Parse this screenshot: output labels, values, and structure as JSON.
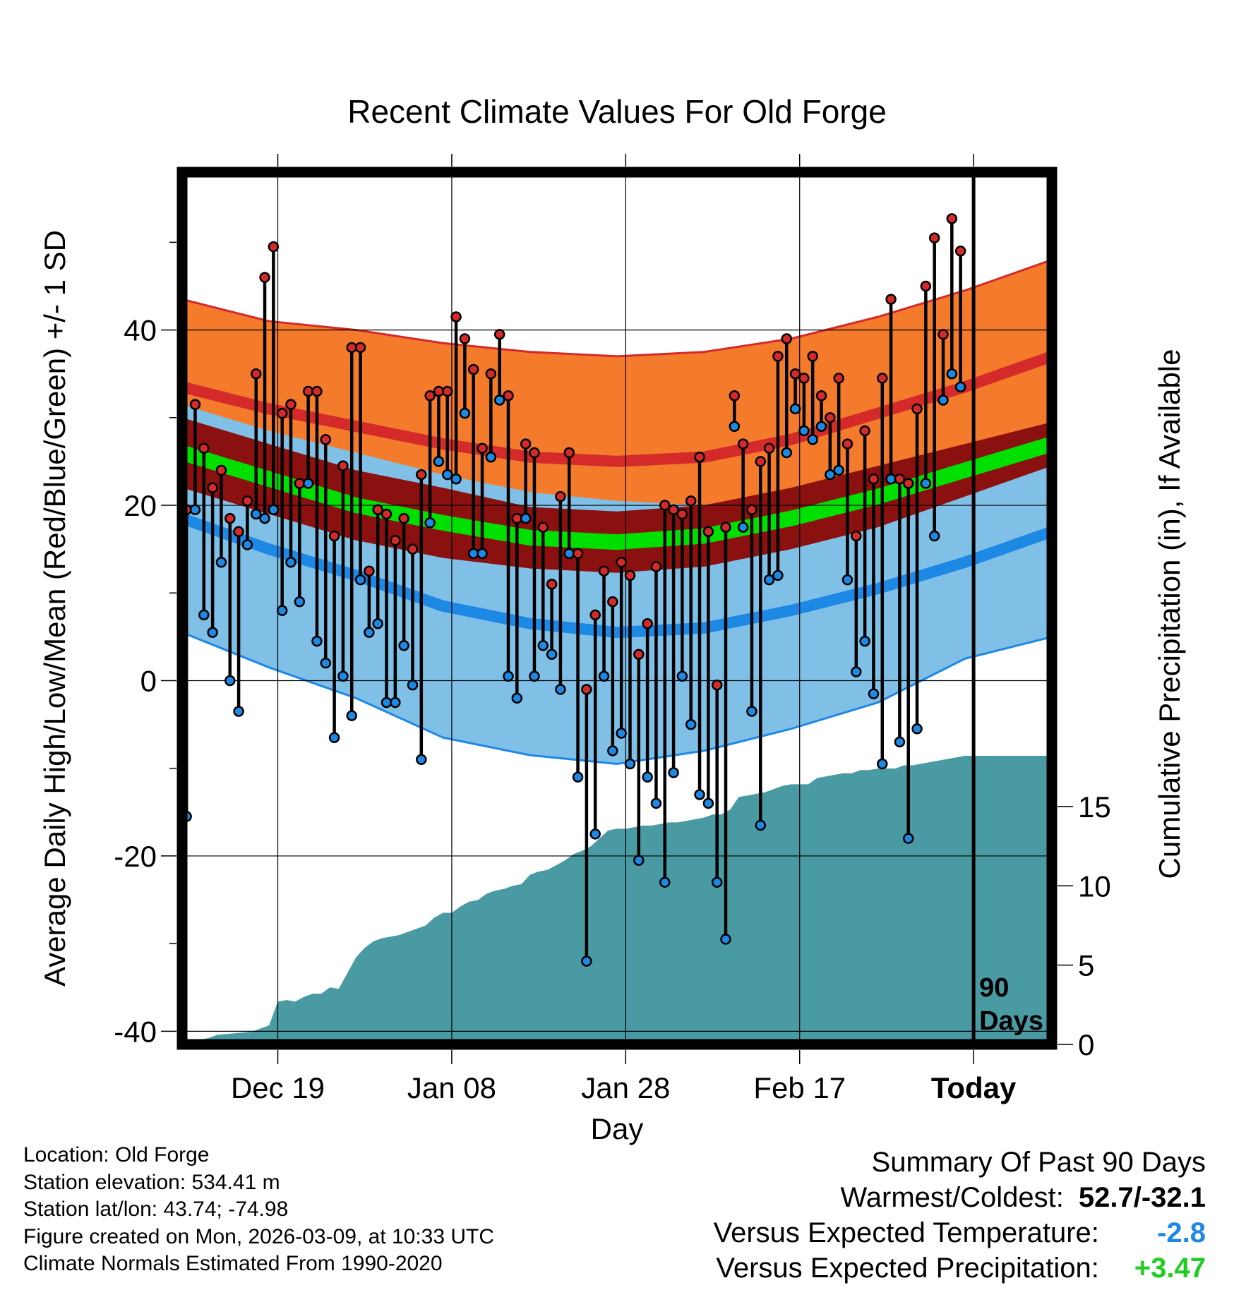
{
  "chart_data": {
    "type": "line",
    "title": "Recent Climate Values For Old Forge",
    "xlabel": "Day",
    "ylabel": "Average Daily High/Low/Mean (Red/Blue/Green) +/- 1 SD",
    "y2label": "Cumulative Precipitation (in), If Available",
    "xlim": [
      0,
      100
    ],
    "ylim": [
      -41.5,
      58
    ],
    "y2lim": [
      0,
      55
    ],
    "x_ticks": [
      {
        "x": 11,
        "label": "Dec 19",
        "bold": false
      },
      {
        "x": 31,
        "label": "Jan 08",
        "bold": false
      },
      {
        "x": 51,
        "label": "Jan 28",
        "bold": false
      },
      {
        "x": 71,
        "label": "Feb 17",
        "bold": false
      },
      {
        "x": 91,
        "label": "Today",
        "bold": true
      }
    ],
    "y_ticks": [
      -40,
      -20,
      0,
      20,
      40
    ],
    "y2_ticks": [
      0,
      5,
      10,
      15
    ],
    "today_x": 91,
    "today_label": [
      "90",
      "Days"
    ],
    "colors": {
      "high_band": "#f47b2b",
      "high_mean": "#d42a2a",
      "low_band": "#80c0e6",
      "low_mean": "#1e88e5",
      "mean_band": "#8b1010",
      "mean_line": "#00e000",
      "precip": "#4a9aa3",
      "frame": "#000000"
    },
    "normals": [
      {
        "x": 0,
        "high": 33.5,
        "high_sd": 10.0,
        "low": 18.5,
        "low_sd": 13.0,
        "mean": 26.0,
        "mean_sd": 4.0
      },
      {
        "x": 10,
        "high": 31.0,
        "high_sd": 10.0,
        "low": 15.0,
        "low_sd": 13.5,
        "mean": 23.0,
        "mean_sd": 4.0
      },
      {
        "x": 20,
        "high": 29.0,
        "high_sd": 11.0,
        "low": 12.0,
        "low_sd": 14.0,
        "mean": 20.0,
        "mean_sd": 4.0
      },
      {
        "x": 30,
        "high": 27.0,
        "high_sd": 11.5,
        "low": 8.5,
        "low_sd": 15.0,
        "mean": 18.0,
        "mean_sd": 4.0
      },
      {
        "x": 40,
        "high": 25.5,
        "high_sd": 12.0,
        "low": 6.5,
        "low_sd": 15.0,
        "mean": 16.3,
        "mean_sd": 3.5
      },
      {
        "x": 50,
        "high": 25.0,
        "high_sd": 12.0,
        "low": 5.5,
        "low_sd": 15.0,
        "mean": 15.8,
        "mean_sd": 3.5
      },
      {
        "x": 60,
        "high": 25.5,
        "high_sd": 12.0,
        "low": 6.0,
        "low_sd": 14.0,
        "mean": 16.5,
        "mean_sd": 3.5
      },
      {
        "x": 70,
        "high": 27.5,
        "high_sd": 11.5,
        "low": 8.0,
        "low_sd": 13.5,
        "mean": 18.5,
        "mean_sd": 3.5
      },
      {
        "x": 80,
        "high": 30.5,
        "high_sd": 11.0,
        "low": 10.5,
        "low_sd": 13.0,
        "mean": 21.0,
        "mean_sd": 3.5
      },
      {
        "x": 90,
        "high": 33.5,
        "high_sd": 11.0,
        "low": 13.5,
        "low_sd": 11.0,
        "mean": 24.0,
        "mean_sd": 3.0
      },
      {
        "x": 100,
        "high": 37.0,
        "high_sd": 11.0,
        "low": 17.0,
        "low_sd": 12.0,
        "mean": 27.0,
        "mean_sd": 2.5
      }
    ],
    "precip": [
      [
        1,
        0.1
      ],
      [
        2,
        0.3
      ],
      [
        3,
        0.4
      ],
      [
        4,
        0.6
      ],
      [
        6,
        0.7
      ],
      [
        8,
        0.8
      ],
      [
        9,
        1.0
      ],
      [
        10,
        1.2
      ],
      [
        11,
        2.7
      ],
      [
        12,
        2.8
      ],
      [
        13,
        2.7
      ],
      [
        14,
        3.0
      ],
      [
        15,
        3.2
      ],
      [
        16,
        3.2
      ],
      [
        17,
        3.6
      ],
      [
        18,
        3.5
      ],
      [
        19,
        4.5
      ],
      [
        20,
        5.5
      ],
      [
        21,
        6.1
      ],
      [
        22,
        6.5
      ],
      [
        23,
        6.7
      ],
      [
        24,
        6.8
      ],
      [
        25,
        6.9
      ],
      [
        26,
        7.1
      ],
      [
        27,
        7.3
      ],
      [
        28,
        7.5
      ],
      [
        29,
        8.0
      ],
      [
        30,
        8.3
      ],
      [
        31,
        8.3
      ],
      [
        32,
        8.7
      ],
      [
        33,
        9.0
      ],
      [
        34,
        9.1
      ],
      [
        35,
        9.5
      ],
      [
        36,
        9.7
      ],
      [
        37,
        9.8
      ],
      [
        38,
        10.0
      ],
      [
        39,
        10.1
      ],
      [
        40,
        10.7
      ],
      [
        41,
        10.9
      ],
      [
        42,
        11.0
      ],
      [
        43,
        11.3
      ],
      [
        44,
        11.6
      ],
      [
        45,
        12.0
      ],
      [
        46,
        12.2
      ],
      [
        47,
        12.5
      ],
      [
        48,
        13.0
      ],
      [
        49,
        13.5
      ],
      [
        50,
        13.6
      ],
      [
        51,
        13.6
      ],
      [
        52,
        13.7
      ],
      [
        53,
        13.8
      ],
      [
        54,
        13.8
      ],
      [
        55,
        13.9
      ],
      [
        56,
        14.0
      ],
      [
        57,
        14.0
      ],
      [
        58,
        14.1
      ],
      [
        59,
        14.2
      ],
      [
        60,
        14.3
      ],
      [
        61,
        14.5
      ],
      [
        62,
        14.5
      ],
      [
        63,
        14.8
      ],
      [
        64,
        15.6
      ],
      [
        65,
        15.7
      ],
      [
        66,
        15.8
      ],
      [
        67,
        15.9
      ],
      [
        68,
        16.1
      ],
      [
        69,
        16.3
      ],
      [
        70,
        16.4
      ],
      [
        71,
        16.4
      ],
      [
        72,
        16.4
      ],
      [
        73,
        16.8
      ],
      [
        74,
        16.9
      ],
      [
        75,
        17.0
      ],
      [
        76,
        17.1
      ],
      [
        77,
        17.1
      ],
      [
        78,
        17.3
      ],
      [
        79,
        17.3
      ],
      [
        80,
        17.4
      ],
      [
        81,
        17.4
      ],
      [
        82,
        17.4
      ],
      [
        83,
        17.6
      ],
      [
        84,
        17.6
      ],
      [
        85,
        17.7
      ],
      [
        86,
        17.8
      ],
      [
        87,
        17.9
      ],
      [
        88,
        18.0
      ],
      [
        89,
        18.1
      ],
      [
        90,
        18.2
      ]
    ],
    "daily": [
      {
        "x": 0.5,
        "high": 19.5,
        "low": -15.5
      },
      {
        "x": 1.5,
        "high": 31.5,
        "low": 19.5
      },
      {
        "x": 2.5,
        "high": 26.5,
        "low": 7.5
      },
      {
        "x": 3.5,
        "high": 22.0,
        "low": 5.5
      },
      {
        "x": 4.5,
        "high": 24.0,
        "low": 13.5
      },
      {
        "x": 5.5,
        "high": 18.5,
        "low": 0.0
      },
      {
        "x": 6.5,
        "high": 17.0,
        "low": -3.5
      },
      {
        "x": 7.5,
        "high": 20.5,
        "low": 15.5
      },
      {
        "x": 8.5,
        "high": 35.0,
        "low": 19.0
      },
      {
        "x": 9.5,
        "high": 46.0,
        "low": 18.5
      },
      {
        "x": 10.5,
        "high": 49.5,
        "low": 19.5
      },
      {
        "x": 11.5,
        "high": 30.5,
        "low": 8.0
      },
      {
        "x": 12.5,
        "high": 31.5,
        "low": 13.5
      },
      {
        "x": 13.5,
        "high": 22.5,
        "low": 9.0
      },
      {
        "x": 14.5,
        "high": 33.0,
        "low": 22.5
      },
      {
        "x": 15.5,
        "high": 33.0,
        "low": 4.5
      },
      {
        "x": 16.5,
        "high": 27.5,
        "low": 2.0
      },
      {
        "x": 17.5,
        "high": 16.5,
        "low": -6.5
      },
      {
        "x": 18.5,
        "high": 24.5,
        "low": 0.5
      },
      {
        "x": 19.5,
        "high": 38.0,
        "low": -4.0
      },
      {
        "x": 20.5,
        "high": 38.0,
        "low": 11.5
      },
      {
        "x": 21.5,
        "high": 12.5,
        "low": 5.5
      },
      {
        "x": 22.5,
        "high": 19.5,
        "low": 6.5
      },
      {
        "x": 23.5,
        "high": 19.0,
        "low": -2.5
      },
      {
        "x": 24.5,
        "high": 16.0,
        "low": -2.5
      },
      {
        "x": 25.5,
        "high": 18.5,
        "low": 4.0
      },
      {
        "x": 26.5,
        "high": 15.0,
        "low": -0.5
      },
      {
        "x": 27.5,
        "high": 23.5,
        "low": -9.0
      },
      {
        "x": 28.5,
        "high": 32.5,
        "low": 18.0
      },
      {
        "x": 29.5,
        "high": 33.0,
        "low": 25.0
      },
      {
        "x": 30.5,
        "high": 33.0,
        "low": 23.5
      },
      {
        "x": 31.5,
        "high": 41.5,
        "low": 23.0
      },
      {
        "x": 32.5,
        "high": 39.0,
        "low": 30.5
      },
      {
        "x": 33.5,
        "high": 35.5,
        "low": 14.5
      },
      {
        "x": 34.5,
        "high": 26.5,
        "low": 14.5
      },
      {
        "x": 35.5,
        "high": 35.0,
        "low": 25.5
      },
      {
        "x": 36.5,
        "high": 39.5,
        "low": 32.0
      },
      {
        "x": 37.5,
        "high": 32.5,
        "low": 0.5
      },
      {
        "x": 38.5,
        "high": 18.5,
        "low": -2.0
      },
      {
        "x": 39.5,
        "high": 27.0,
        "low": 18.5
      },
      {
        "x": 40.5,
        "high": 26.0,
        "low": 0.5
      },
      {
        "x": 41.5,
        "high": 17.5,
        "low": 4.0
      },
      {
        "x": 42.5,
        "high": 11.0,
        "low": 3.0
      },
      {
        "x": 43.5,
        "high": 21.0,
        "low": -1.0
      },
      {
        "x": 44.5,
        "high": 26.0,
        "low": 14.5
      },
      {
        "x": 45.5,
        "high": 14.5,
        "low": -11.0
      },
      {
        "x": 46.5,
        "high": -1.0,
        "low": -32.0
      },
      {
        "x": 47.5,
        "high": 7.5,
        "low": -17.5
      },
      {
        "x": 48.5,
        "high": 12.5,
        "low": 0.5
      },
      {
        "x": 49.5,
        "high": 9.0,
        "low": -8.0
      },
      {
        "x": 50.5,
        "high": 13.5,
        "low": -6.0
      },
      {
        "x": 51.5,
        "high": 12.0,
        "low": -9.5
      },
      {
        "x": 52.5,
        "high": 3.0,
        "low": -20.5
      },
      {
        "x": 53.5,
        "high": 6.5,
        "low": -11.0
      },
      {
        "x": 54.5,
        "high": 13.0,
        "low": -14.0
      },
      {
        "x": 55.5,
        "high": 20.0,
        "low": -23.0
      },
      {
        "x": 56.5,
        "high": 19.5,
        "low": -10.5
      },
      {
        "x": 57.5,
        "high": 19.0,
        "low": 0.5
      },
      {
        "x": 58.5,
        "high": 20.5,
        "low": -5.0
      },
      {
        "x": 59.5,
        "high": 25.5,
        "low": -13.0
      },
      {
        "x": 60.5,
        "high": 17.0,
        "low": -14.0
      },
      {
        "x": 61.5,
        "high": -0.5,
        "low": -23.0
      },
      {
        "x": 62.5,
        "high": 17.5,
        "low": -29.5
      },
      {
        "x": 63.5,
        "high": 32.5,
        "low": 29.0
      },
      {
        "x": 64.5,
        "high": 27.0,
        "low": 17.5
      },
      {
        "x": 65.5,
        "high": 19.5,
        "low": -3.5
      },
      {
        "x": 66.5,
        "high": 25.0,
        "low": -16.5
      },
      {
        "x": 67.5,
        "high": 26.5,
        "low": 11.5
      },
      {
        "x": 68.5,
        "high": 37.0,
        "low": 12.0
      },
      {
        "x": 69.5,
        "high": 39.0,
        "low": 26.0
      },
      {
        "x": 70.5,
        "high": 35.0,
        "low": 31.0
      },
      {
        "x": 71.5,
        "high": 34.5,
        "low": 28.5
      },
      {
        "x": 72.5,
        "high": 37.0,
        "low": 27.5
      },
      {
        "x": 73.5,
        "high": 32.5,
        "low": 29.0
      },
      {
        "x": 74.5,
        "high": 30.0,
        "low": 23.5
      },
      {
        "x": 75.5,
        "high": 34.5,
        "low": 24.0
      },
      {
        "x": 76.5,
        "high": 27.0,
        "low": 11.5
      },
      {
        "x": 77.5,
        "high": 16.5,
        "low": 1.0
      },
      {
        "x": 78.5,
        "high": 28.5,
        "low": 4.5
      },
      {
        "x": 79.5,
        "high": 23.0,
        "low": -1.5
      },
      {
        "x": 80.5,
        "high": 34.5,
        "low": -9.5
      },
      {
        "x": 81.5,
        "high": 43.5,
        "low": 23.0
      },
      {
        "x": 82.5,
        "high": 23.0,
        "low": -7.0
      },
      {
        "x": 83.5,
        "high": 22.5,
        "low": -18.0
      },
      {
        "x": 84.5,
        "high": 31.0,
        "low": -5.5
      },
      {
        "x": 85.5,
        "high": 45.0,
        "low": 22.5
      },
      {
        "x": 86.5,
        "high": 50.5,
        "low": 16.5
      },
      {
        "x": 87.5,
        "high": 39.5,
        "low": 32.0
      },
      {
        "x": 88.5,
        "high": 52.7,
        "low": 35.0
      },
      {
        "x": 89.5,
        "high": 49.0,
        "low": 33.5
      }
    ]
  },
  "info": {
    "location": "Location: Old Forge",
    "elevation": "Station elevation: 534.41 m",
    "latlon": "Station lat/lon: 43.74; -74.98",
    "created": "Figure created on Mon, 2026-03-09, at 10:33 UTC",
    "normals": "Climate Normals Estimated From 1990-2020"
  },
  "summary": {
    "heading": "Summary Of Past 90 Days",
    "warmest_label": "Warmest/Coldest:",
    "warmest_value": "52.7/-32.1",
    "temp_label": "Versus Expected Temperature:",
    "temp_value": "-2.8",
    "temp_color": "#1e88e5",
    "precip_label": "Versus Expected Precipitation:",
    "precip_value": "+3.47",
    "precip_color": "#22cc22"
  }
}
